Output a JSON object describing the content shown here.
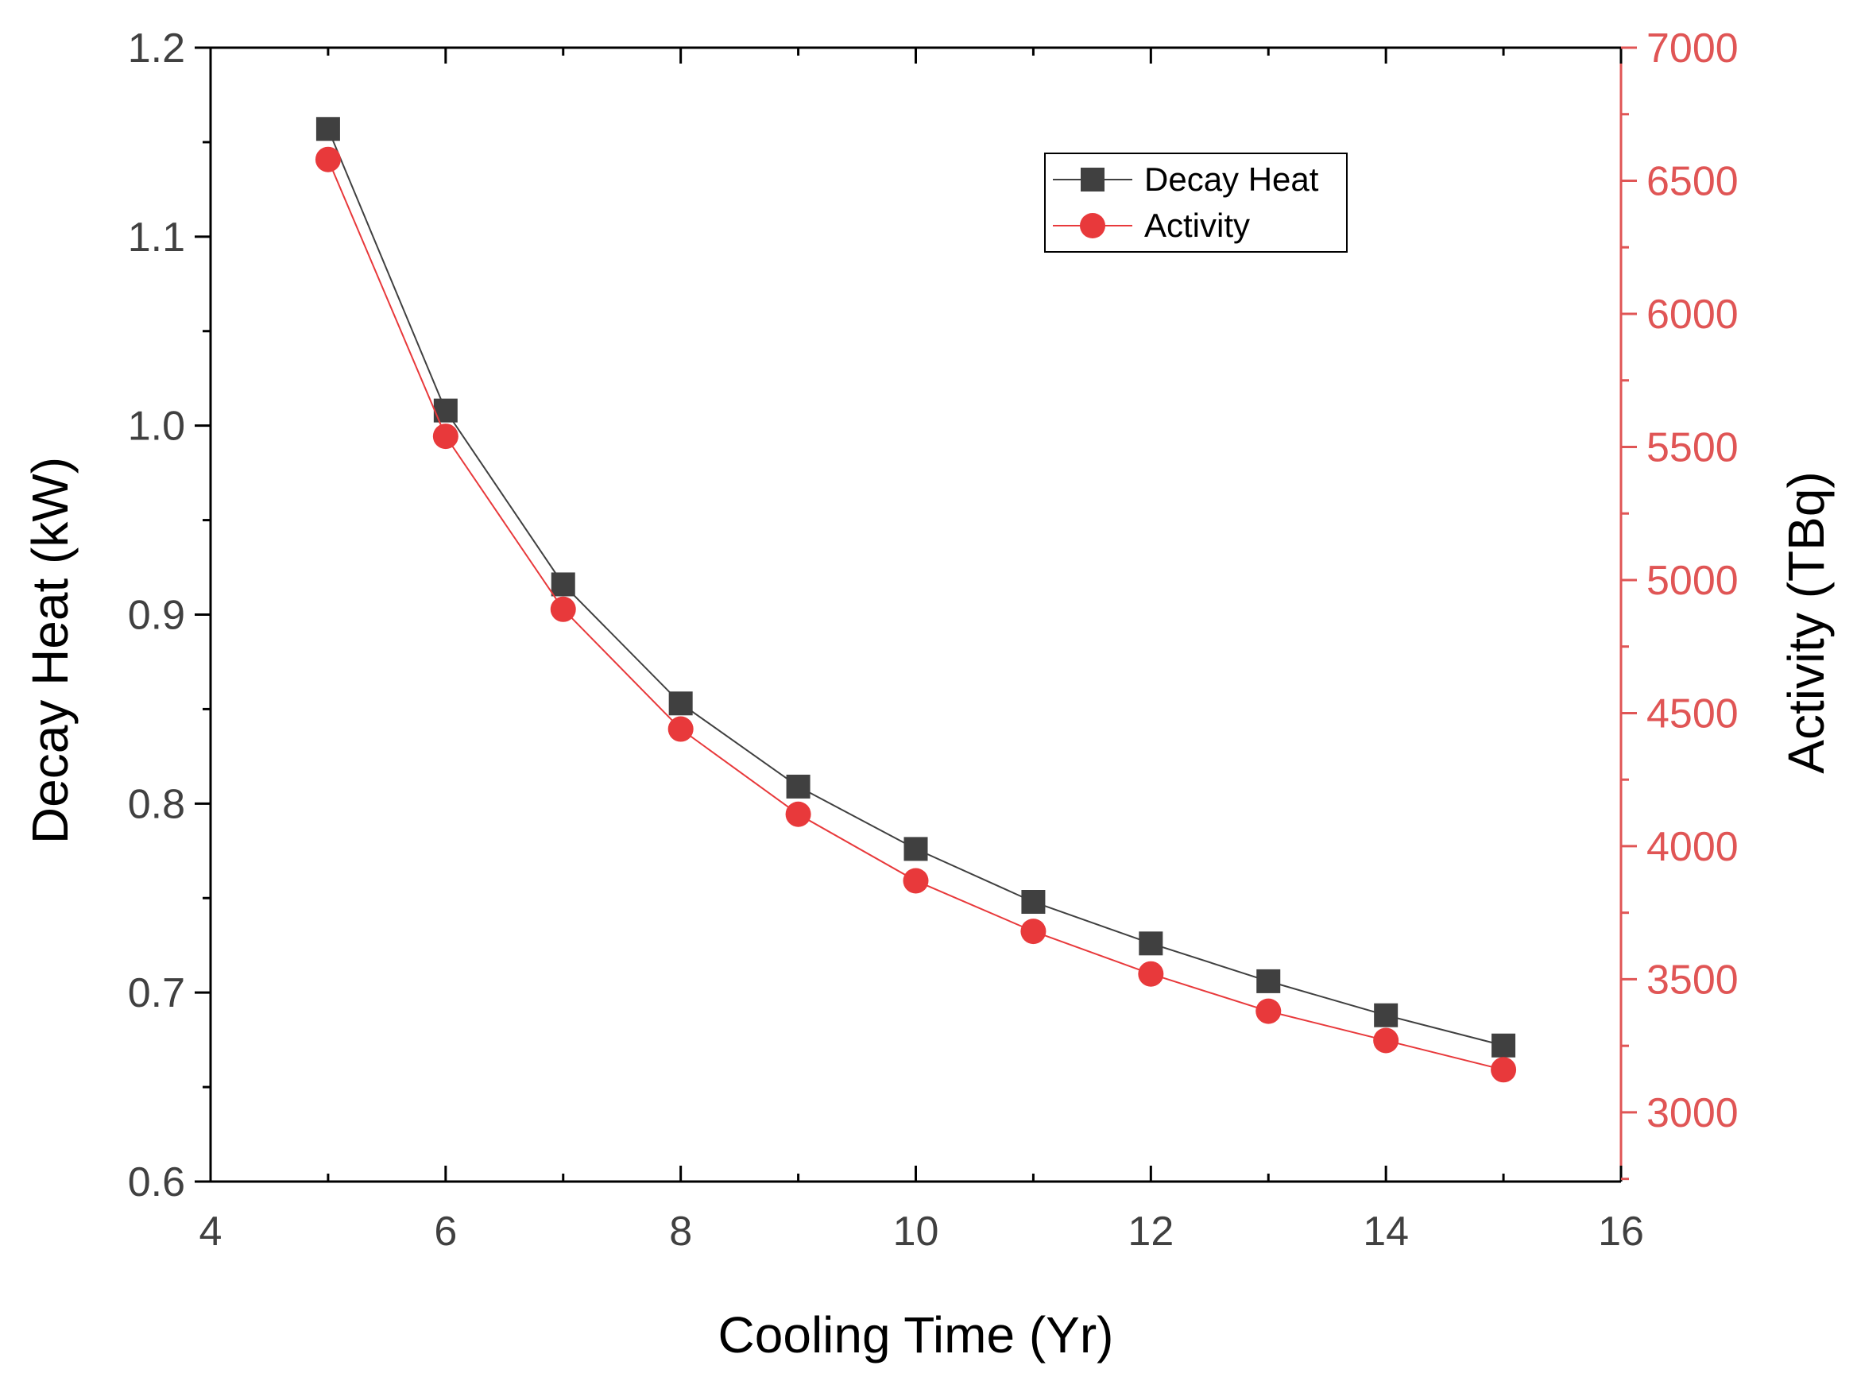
{
  "chart_data": {
    "type": "line",
    "title": "",
    "xlabel": "Cooling Time (Yr)",
    "ylabel": "Decay Heat (kW)",
    "y2label": "Activity (TBq)",
    "xlim": [
      4,
      16
    ],
    "ylim": [
      0.6,
      1.2
    ],
    "y2lim": [
      2740,
      7000
    ],
    "x_ticks": [
      4,
      6,
      8,
      10,
      12,
      14,
      16
    ],
    "y_ticks": [
      "0.6",
      "0.7",
      "0.8",
      "0.9",
      "1.0",
      "1.1",
      "1.2"
    ],
    "y2_ticks": [
      3000,
      3500,
      4000,
      4500,
      5000,
      5500,
      6000,
      6500,
      7000
    ],
    "grid": false,
    "legend_position": "top-right",
    "x": [
      5,
      6,
      7,
      8,
      9,
      10,
      11,
      12,
      13,
      14,
      15
    ],
    "series": [
      {
        "name": "Decay Heat",
        "axis": "left",
        "marker": "square",
        "color": "#404040",
        "values": [
          1.157,
          1.008,
          0.916,
          0.853,
          0.809,
          0.776,
          0.748,
          0.726,
          0.706,
          0.688,
          0.672
        ]
      },
      {
        "name": "Activity",
        "axis": "right",
        "marker": "circle",
        "color": "#e8393b",
        "values": [
          6580,
          5540,
          4890,
          4440,
          4120,
          3870,
          3680,
          3520,
          3380,
          3270,
          3160
        ]
      }
    ],
    "colors": {
      "left_axis": "#000000",
      "right_axis": "#e05555",
      "left_tick_label": "#404040",
      "right_tick_label": "#e05555"
    }
  }
}
